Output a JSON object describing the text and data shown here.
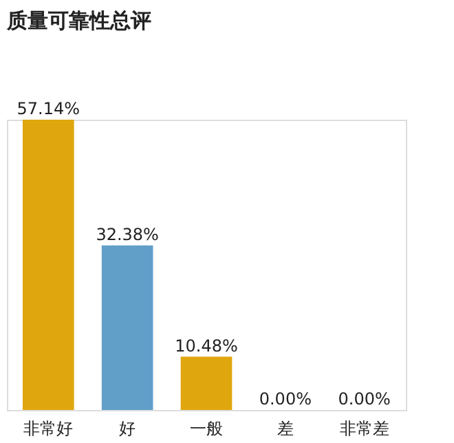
{
  "chart_data": {
    "type": "bar",
    "title": "质量可靠性总评",
    "categories": [
      "非常好",
      "好",
      "一般",
      "差",
      "非常差"
    ],
    "values": [
      57.14,
      32.38,
      10.48,
      0,
      0
    ],
    "colors": [
      "#e0a60e",
      "#619fc9",
      "#e0a60e",
      "#e0a60e",
      "#e0a60e"
    ],
    "value_labels": [
      "57.14%",
      "32.38%",
      "10.48%",
      "0.00%",
      "0.00%"
    ]
  }
}
